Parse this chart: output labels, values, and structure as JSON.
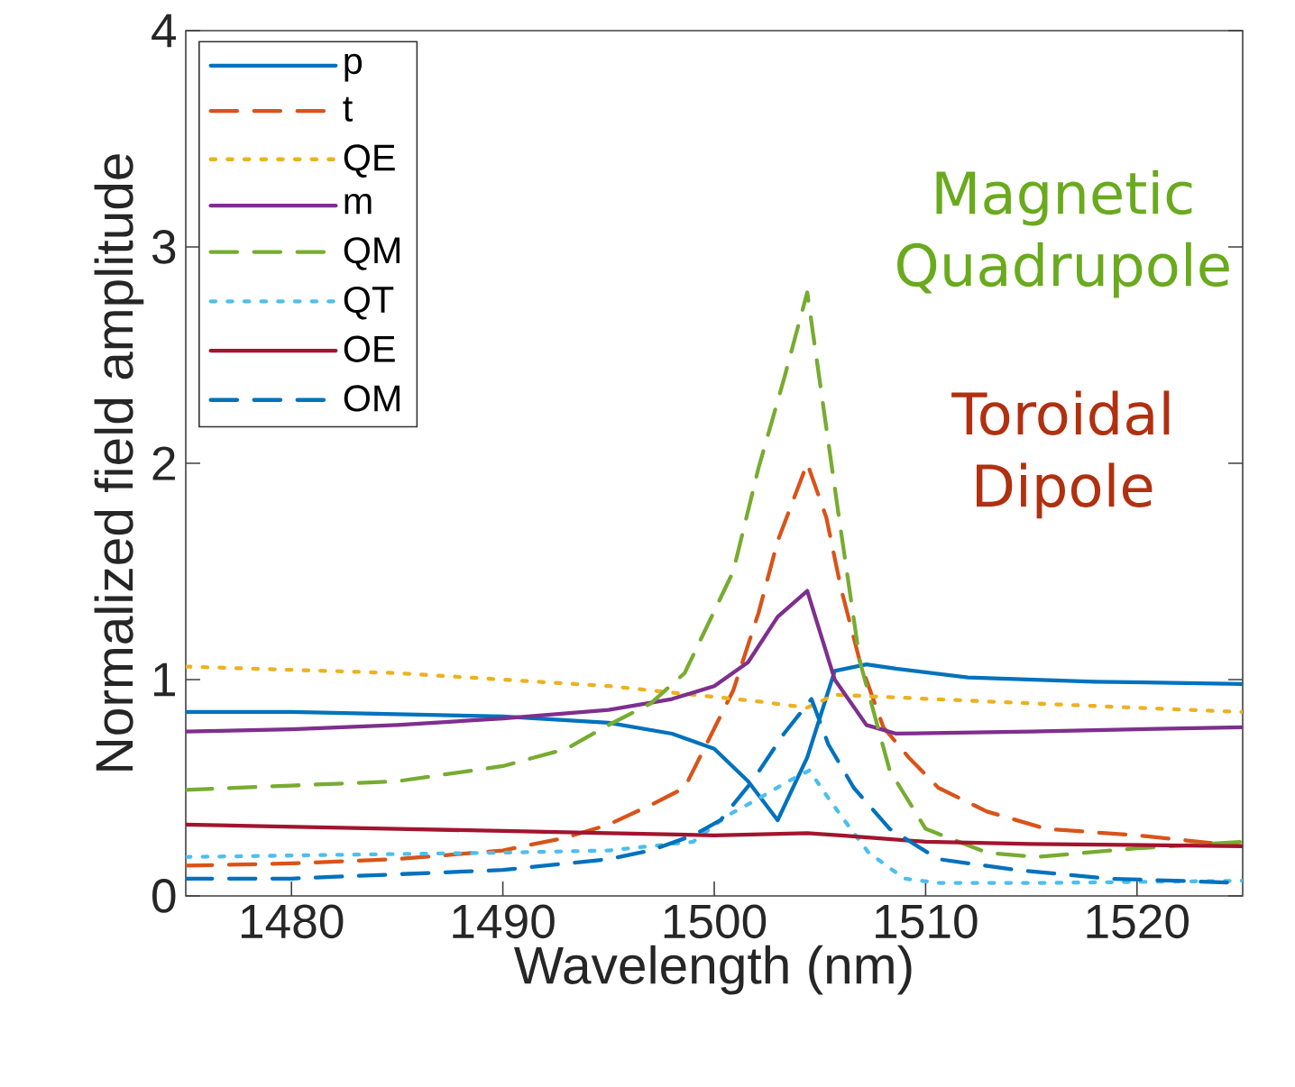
{
  "chart_data": {
    "type": "line",
    "xlabel": "Wavelength (nm)",
    "ylabel": "Normalized field amplitude",
    "xlim": [
      1475,
      1525
    ],
    "ylim": [
      0,
      4
    ],
    "xticks": [
      1480,
      1490,
      1500,
      1510,
      1520
    ],
    "yticks": [
      0,
      1,
      2,
      3,
      4
    ],
    "legend": "top left",
    "grid": false,
    "annotations": [
      "Magnetic Quadrupole",
      "Toroidal Dipole"
    ],
    "series": [
      {
        "name": "p",
        "color": "#0072bd",
        "line_style": "solid",
        "x": [
          1475,
          1480,
          1485,
          1490,
          1495,
          1498,
          1500,
          1501.6,
          1503.0,
          1504.4,
          1505.7,
          1507.2,
          1508.6,
          1512,
          1518,
          1525
        ],
        "values": [
          0.85,
          0.85,
          0.84,
          0.83,
          0.8,
          0.75,
          0.68,
          0.53,
          0.35,
          0.64,
          1.04,
          1.07,
          1.05,
          1.01,
          0.99,
          0.98
        ]
      },
      {
        "name": "t",
        "color": "#d95319",
        "line_style": "dashed",
        "x": [
          1475,
          1480,
          1485,
          1490,
          1493,
          1495,
          1497,
          1498.6,
          1500.9,
          1502.1,
          1503.0,
          1504.4,
          1505.3,
          1506.0,
          1506.9,
          1508.0,
          1509.2,
          1510.6,
          1512.9,
          1515.7,
          1520,
          1525
        ],
        "values": [
          0.14,
          0.15,
          0.17,
          0.21,
          0.27,
          0.33,
          0.42,
          0.5,
          0.95,
          1.31,
          1.64,
          2.0,
          1.75,
          1.42,
          1.08,
          0.78,
          0.64,
          0.5,
          0.39,
          0.31,
          0.28,
          0.23
        ]
      },
      {
        "name": "QE",
        "color": "#edb120",
        "line_style": "dotted",
        "x": [
          1475,
          1485,
          1490,
          1495,
          1499,
          1500,
          1502,
          1504.4,
          1505.7,
          1508,
          1515,
          1525
        ],
        "values": [
          1.06,
          1.03,
          1.0,
          0.97,
          0.93,
          0.92,
          0.9,
          0.87,
          0.93,
          0.92,
          0.89,
          0.85
        ]
      },
      {
        "name": "m",
        "color": "#7e2f8e",
        "line_style": "solid",
        "x": [
          1475,
          1480,
          1485,
          1490,
          1495,
          1498,
          1500,
          1501.6,
          1503.0,
          1504.4,
          1505.7,
          1507.2,
          1508.6,
          1515,
          1525
        ],
        "values": [
          0.76,
          0.77,
          0.79,
          0.82,
          0.86,
          0.91,
          0.97,
          1.08,
          1.29,
          1.41,
          1.0,
          0.79,
          0.75,
          0.76,
          0.78
        ]
      },
      {
        "name": "QM",
        "color": "#77ac30",
        "line_style": "dashed",
        "x": [
          1475,
          1480,
          1485,
          1490,
          1493,
          1495,
          1497,
          1498.6,
          1500.9,
          1502.1,
          1503.3,
          1504.4,
          1505.9,
          1506.9,
          1508.3,
          1510,
          1512.9,
          1515.2,
          1520,
          1525
        ],
        "values": [
          0.49,
          0.51,
          0.53,
          0.6,
          0.68,
          0.79,
          0.89,
          1.03,
          1.5,
          1.98,
          2.39,
          2.79,
          1.75,
          1.08,
          0.58,
          0.31,
          0.2,
          0.18,
          0.22,
          0.25
        ]
      },
      {
        "name": "QT",
        "color": "#4dbeee",
        "line_style": "dotted",
        "x": [
          1475,
          1490,
          1495,
          1499,
          1500.6,
          1502.1,
          1503.5,
          1504.5,
          1505.2,
          1506.0,
          1507.3,
          1509.0,
          1510.6,
          1515.7,
          1525
        ],
        "values": [
          0.18,
          0.2,
          0.21,
          0.25,
          0.37,
          0.45,
          0.53,
          0.58,
          0.48,
          0.37,
          0.2,
          0.08,
          0.06,
          0.06,
          0.07
        ]
      },
      {
        "name": "OE",
        "color": "#a2142f",
        "line_style": "solid",
        "x": [
          1475,
          1485,
          1490,
          1495,
          1500,
          1504.4,
          1506,
          1510,
          1515,
          1525
        ],
        "values": [
          0.33,
          0.31,
          0.3,
          0.29,
          0.28,
          0.29,
          0.28,
          0.25,
          0.24,
          0.23
        ]
      },
      {
        "name": "OM",
        "color": "#0072bd",
        "line_style": "dashed",
        "x": [
          1475,
          1480,
          1485,
          1490,
          1495,
          1497,
          1499,
          1500.3,
          1501.8,
          1503.3,
          1504.6,
          1505.4,
          1506.6,
          1508.3,
          1510.6,
          1514.3,
          1518.6,
          1525
        ],
        "values": [
          0.08,
          0.08,
          0.1,
          0.12,
          0.17,
          0.21,
          0.28,
          0.35,
          0.53,
          0.75,
          0.91,
          0.7,
          0.5,
          0.31,
          0.17,
          0.12,
          0.08,
          0.06
        ]
      }
    ]
  }
}
